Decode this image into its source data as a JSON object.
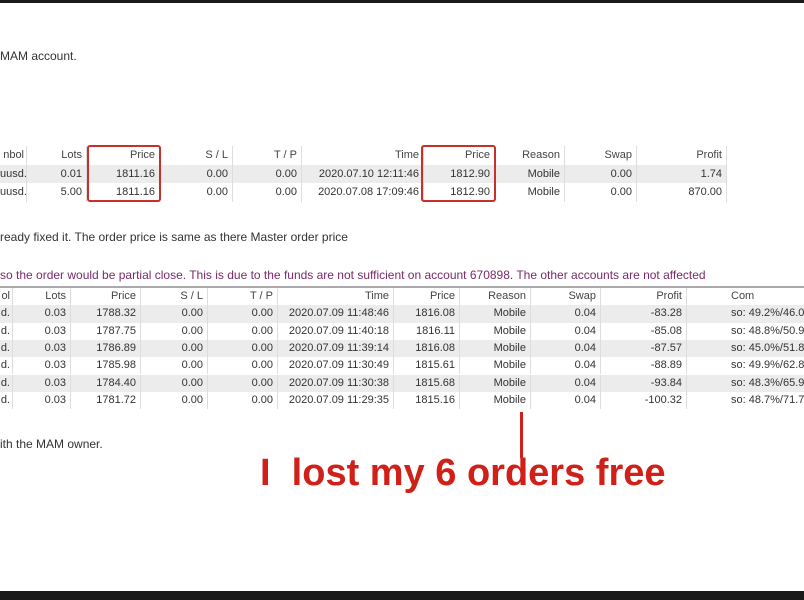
{
  "text": {
    "line1": "MAM account.",
    "line2": "ready fixed it. The order price is same as there Master order price",
    "line3": "so the order would be partial close. This is due to the funds are not sufficient on account 670898. The other accounts are not affected",
    "line4": "ith the MAM owner."
  },
  "annotation": "I  lost my 6 orders free",
  "table1": {
    "headers": [
      "nbol",
      "Lots",
      "Price",
      "S / L",
      "T / P",
      "Time",
      "Price",
      "Reason",
      "Swap",
      "Profit"
    ],
    "rows": [
      [
        "uusd.",
        "0.01",
        "1811.16",
        "0.00",
        "0.00",
        "2020.07.10 12:11:46",
        "1812.90",
        "Mobile",
        "0.00",
        "1.74"
      ],
      [
        "uusd.",
        "5.00",
        "1811.16",
        "0.00",
        "0.00",
        "2020.07.08 17:09:46",
        "1812.90",
        "Mobile",
        "0.00",
        "870.00"
      ]
    ]
  },
  "table2": {
    "headers": [
      "ol",
      "Lots",
      "Price",
      "S / L",
      "T / P",
      "Time",
      "Price",
      "Reason",
      "Swap",
      "Profit",
      "Com"
    ],
    "rows": [
      [
        "d.",
        "0.03",
        "1788.32",
        "0.00",
        "0.00",
        "2020.07.09 11:48:46",
        "1816.08",
        "Mobile",
        "0.04",
        "-83.28",
        "so: 49.2%/46.0"
      ],
      [
        "d.",
        "0.03",
        "1787.75",
        "0.00",
        "0.00",
        "2020.07.09 11:40:18",
        "1816.11",
        "Mobile",
        "0.04",
        "-85.08",
        "so: 48.8%/50.9/"
      ],
      [
        "d.",
        "0.03",
        "1786.89",
        "0.00",
        "0.00",
        "2020.07.09 11:39:14",
        "1816.08",
        "Mobile",
        "0.04",
        "-87.57",
        "so: 45.0%/51.8/"
      ],
      [
        "d.",
        "0.03",
        "1785.98",
        "0.00",
        "0.00",
        "2020.07.09 11:30:49",
        "1815.61",
        "Mobile",
        "0.04",
        "-88.89",
        "so: 49.9%/62.8/"
      ],
      [
        "d.",
        "0.03",
        "1784.40",
        "0.00",
        "0.00",
        "2020.07.09 11:30:38",
        "1815.68",
        "Mobile",
        "0.04",
        "-93.84",
        "so: 48.3%/65.9/"
      ],
      [
        "d.",
        "0.03",
        "1781.72",
        "0.00",
        "0.00",
        "2020.07.09 11:29:35",
        "1815.16",
        "Mobile",
        "0.04",
        "-100.32",
        "so: 48.7%/71.7/"
      ]
    ]
  },
  "colors": {
    "highlight": "#c8302a",
    "notice": "#7a2a6a"
  }
}
